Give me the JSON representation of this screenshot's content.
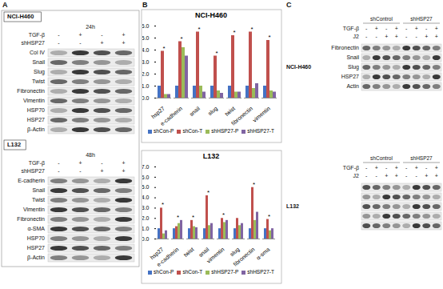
{
  "panels": {
    "A": {
      "label": "A",
      "blots": [
        {
          "cell_line": "NCI-H460",
          "time": "24h",
          "conditions": [
            {
              "name": "TGF-β",
              "lanes": [
                "-",
                "+",
                "-",
                "+"
              ]
            },
            {
              "name": "shHSP27",
              "lanes": [
                "-",
                "-",
                "+",
                "+"
              ]
            }
          ],
          "proteins": [
            "Col IV",
            "Snail",
            "Slug",
            "Twist",
            "Fibronectin",
            "Vimentin",
            "HSP70",
            "HSP27",
            "β-Actin"
          ]
        },
        {
          "cell_line": "L132",
          "time": "48h",
          "conditions": [
            {
              "name": "TGF-β",
              "lanes": [
                "-",
                "+",
                "-",
                "+"
              ]
            },
            {
              "name": "shHSP27",
              "lanes": [
                "-",
                "-",
                "+",
                "+"
              ]
            }
          ],
          "proteins": [
            "E-cadherin",
            "Snail",
            "Twist",
            "Vimentin",
            "Fibronectin",
            "α-SMA",
            "HSP70",
            "HSP27",
            "β-Actin"
          ]
        }
      ]
    },
    "B": {
      "label": "B"
    },
    "C": {
      "label": "C",
      "blots": [
        {
          "cell_line": "NCI-H460",
          "groups": [
            "shControl",
            "shHSP27"
          ],
          "conditions": [
            {
              "name": "TGF-β",
              "lanes": [
                "-",
                "+",
                "-",
                "+",
                "-",
                "+",
                "-",
                "+"
              ]
            },
            {
              "name": "J2",
              "lanes": [
                "-",
                "-",
                "+",
                "+",
                "-",
                "-",
                "+",
                "+"
              ]
            }
          ],
          "proteins": [
            "Fibronectin",
            "Snail",
            "Slug",
            "HSP27",
            "Actin"
          ]
        },
        {
          "cell_line": "L132",
          "groups": [
            "shControl",
            "shHSP27"
          ],
          "conditions": [
            {
              "name": "TGF-β",
              "lanes": [
                "-",
                "+",
                "-",
                "+",
                "-",
                "+",
                "-",
                "+"
              ]
            },
            {
              "name": "J2",
              "lanes": [
                "-",
                "-",
                "+",
                "+",
                "-",
                "-",
                "+",
                "+"
              ]
            }
          ],
          "proteins": [
            null,
            null,
            null,
            null,
            null
          ]
        }
      ]
    }
  },
  "chart_data": [
    {
      "type": "bar",
      "title": "NCI-H460",
      "categories": [
        "hsp27",
        "e-cadherin",
        "snail",
        "slug",
        "twist",
        "fibronectin",
        "vimentin"
      ],
      "series": [
        {
          "name": "shCon-P",
          "color": "#4472c4",
          "values": [
            1,
            1,
            1,
            1,
            1,
            1,
            1
          ]
        },
        {
          "name": "shCon-T",
          "color": "#c0504d",
          "values": [
            3.9,
            4.7,
            5.5,
            3.5,
            5.2,
            5.5,
            4.8
          ]
        },
        {
          "name": "shHSP27-P",
          "color": "#9bbb59",
          "values": [
            0.3,
            4.2,
            1.0,
            0.6,
            0.5,
            0.8,
            0.6
          ]
        },
        {
          "name": "shHSP27-T",
          "color": "#8064a2",
          "values": [
            0.3,
            3.5,
            0.5,
            0.4,
            0.5,
            1.2,
            0.5
          ]
        }
      ],
      "ylim": [
        0,
        6
      ],
      "yticks": [
        0,
        1,
        2,
        3,
        4,
        5,
        6
      ],
      "annotations": [
        {
          "category": "hsp27",
          "text": "*"
        },
        {
          "category": "e-cadherin",
          "text": "*"
        },
        {
          "category": "snail",
          "text": "*"
        },
        {
          "category": "slug",
          "text": "*"
        },
        {
          "category": "twist",
          "text": "*"
        },
        {
          "category": "fibronectin",
          "text": "*"
        },
        {
          "category": "vimentin",
          "text": "*"
        }
      ]
    },
    {
      "type": "bar",
      "title": "L132",
      "categories": [
        "hsp27",
        "e-cadherin",
        "twist",
        "snail",
        "vimentin",
        "slug",
        "fibronectin",
        "α-sma"
      ],
      "series": [
        {
          "name": "shCon-P",
          "color": "#4472c4",
          "values": [
            1,
            1,
            1,
            1,
            1,
            1,
            1,
            1
          ]
        },
        {
          "name": "shCon-T",
          "color": "#c0504d",
          "values": [
            3.0,
            1.2,
            1.8,
            4.2,
            2.0,
            2.0,
            5.0,
            1.9
          ]
        },
        {
          "name": "shHSP27-P",
          "color": "#9bbb59",
          "values": [
            0.5,
            1.5,
            1.2,
            1.3,
            1.6,
            1.3,
            1.8,
            0.8
          ]
        },
        {
          "name": "shHSP27-T",
          "color": "#8064a2",
          "values": [
            0.8,
            1.8,
            1.1,
            1.5,
            1.8,
            1.5,
            2.6,
            1.0
          ]
        }
      ],
      "ylim": [
        0,
        7
      ],
      "yticks": [
        0,
        1,
        2,
        3,
        4,
        5,
        6,
        7
      ],
      "annotations": [
        {
          "category": "hsp27",
          "text": "*"
        },
        {
          "category": "e-cadherin",
          "text": "*"
        },
        {
          "category": "twist",
          "text": "*"
        },
        {
          "category": "snail",
          "text": "*"
        },
        {
          "category": "vimentin",
          "text": "*"
        },
        {
          "category": "fibronectin",
          "text": "*"
        },
        {
          "category": "α-sma",
          "text": "*"
        }
      ]
    }
  ]
}
